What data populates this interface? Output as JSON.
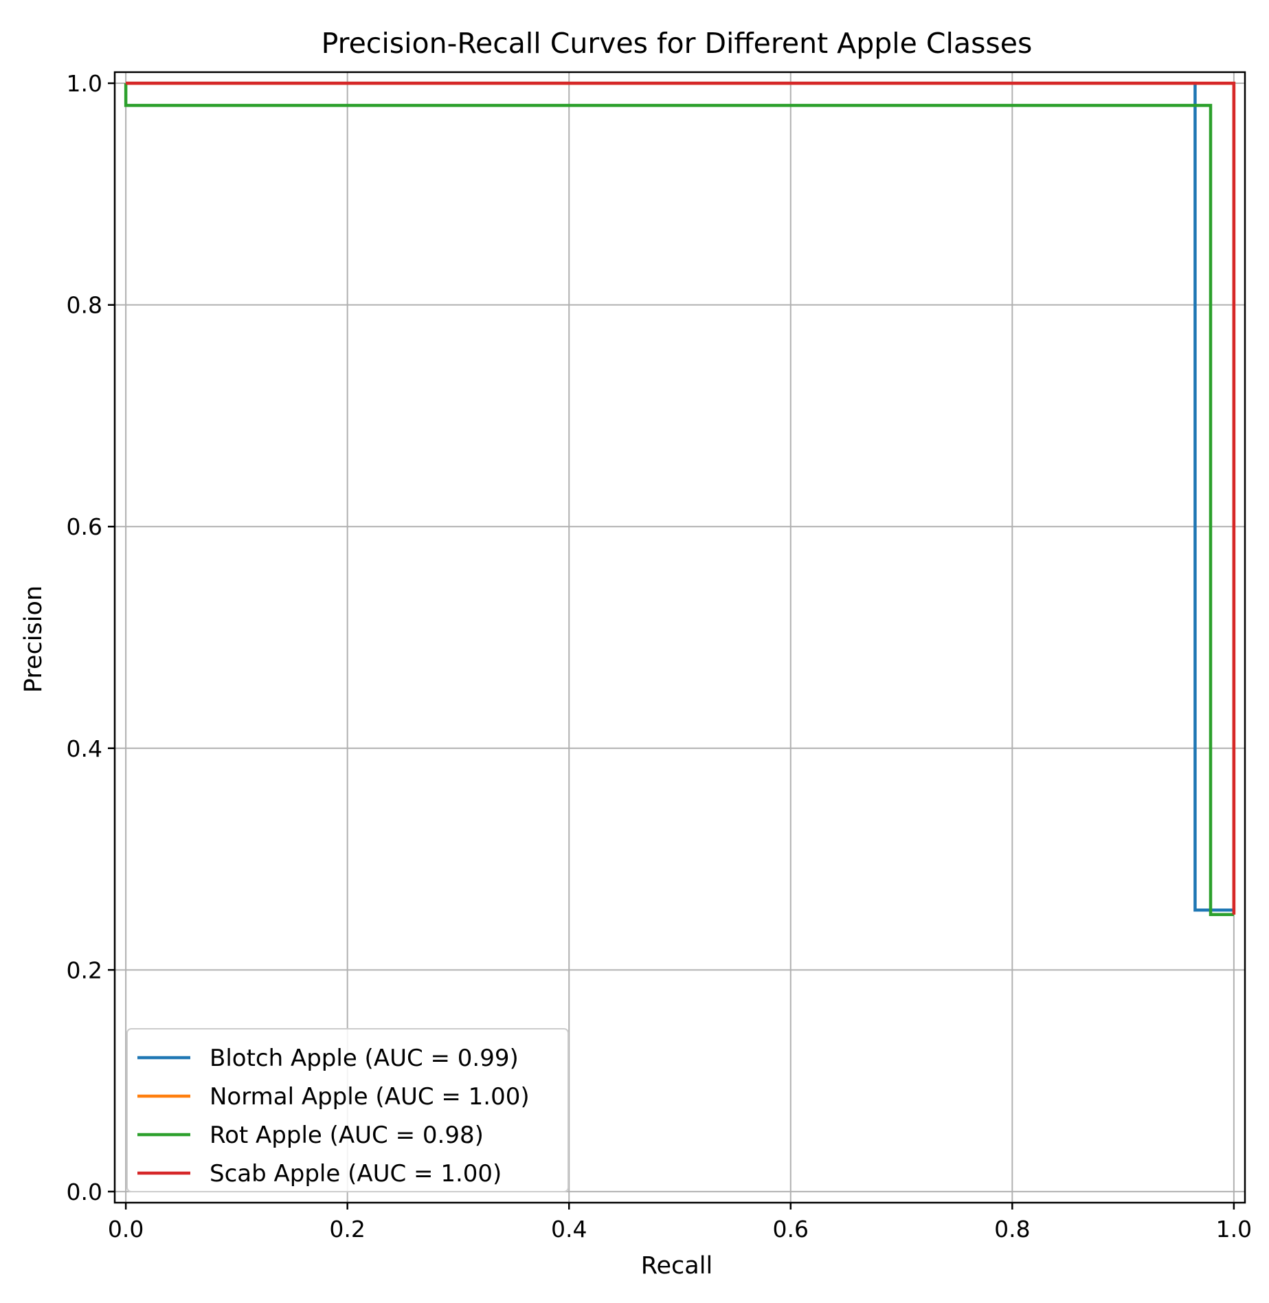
{
  "chart_data": {
    "type": "line",
    "title": "Precision-Recall Curves for Different Apple Classes",
    "xlabel": "Recall",
    "ylabel": "Precision",
    "xlim": [
      -0.01,
      1.01
    ],
    "ylim": [
      -0.01,
      1.01
    ],
    "xticks": [
      0.0,
      0.2,
      0.4,
      0.6,
      0.8,
      1.0
    ],
    "xtick_labels": [
      "0.0",
      "0.2",
      "0.4",
      "0.6",
      "0.8",
      "1.0"
    ],
    "yticks": [
      0.0,
      0.2,
      0.4,
      0.6,
      0.8,
      1.0
    ],
    "ytick_labels": [
      "0.0",
      "0.2",
      "0.4",
      "0.6",
      "0.8",
      "1.0"
    ],
    "grid": true,
    "legend_position": "lower-left",
    "series": [
      {
        "name": "Blotch Apple (AUC = 0.99)",
        "color": "#1f77b4",
        "x": [
          0.0,
          0.965,
          0.965,
          1.0
        ],
        "y": [
          1.0,
          1.0,
          0.254,
          0.254
        ]
      },
      {
        "name": "Normal Apple (AUC = 1.00)",
        "color": "#ff7f0e",
        "x": [
          0.0,
          1.0,
          1.0
        ],
        "y": [
          1.0,
          1.0,
          0.25
        ]
      },
      {
        "name": "Rot Apple (AUC = 0.98)",
        "color": "#2ca02c",
        "x": [
          0.0,
          0.0,
          0.979,
          0.979,
          1.0
        ],
        "y": [
          1.0,
          0.98,
          0.98,
          0.25,
          0.25
        ]
      },
      {
        "name": "Scab Apple (AUC = 1.00)",
        "color": "#d62728",
        "x": [
          0.0,
          1.0,
          1.0
        ],
        "y": [
          1.0,
          1.0,
          0.25
        ]
      }
    ]
  }
}
